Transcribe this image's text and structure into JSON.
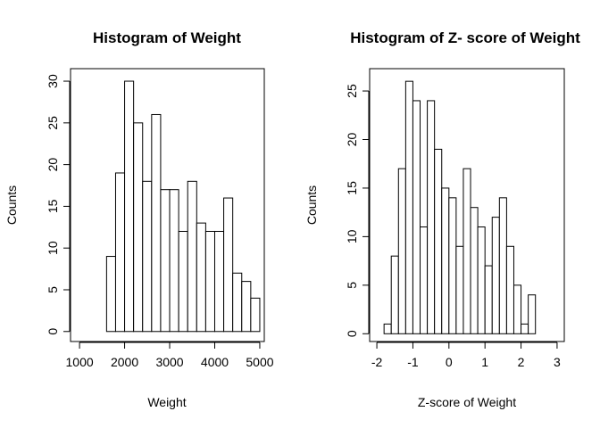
{
  "chart_data": [
    {
      "type": "bar",
      "title": "Histogram of Weight",
      "xlabel": "Weight",
      "ylabel": "Counts",
      "xlim": [
        800,
        5100
      ],
      "ylim": [
        -1.2,
        31.5
      ],
      "x_ticks": [
        1000,
        2000,
        3000,
        4000,
        5000
      ],
      "x_tick_labels": [
        "1000",
        "2000",
        "3000",
        "4000",
        "5000"
      ],
      "y_ticks": [
        0,
        5,
        10,
        15,
        20,
        25,
        30
      ],
      "y_tick_labels": [
        "0",
        "5",
        "10",
        "15",
        "20",
        "25",
        "30"
      ],
      "bin_edges": [
        1600,
        1800,
        2000,
        2200,
        2400,
        2600,
        2800,
        3000,
        3200,
        3400,
        3600,
        3800,
        4000,
        4200,
        4400,
        4600,
        4800,
        5000
      ],
      "values": [
        9,
        19,
        30,
        25,
        18,
        26,
        17,
        17,
        12,
        18,
        13,
        12,
        12,
        16,
        7,
        6,
        4
      ],
      "grid": false
    },
    {
      "type": "bar",
      "title": "Histogram of Z- score of Weight",
      "xlabel": "Z-score of Weight",
      "ylabel": "Counts",
      "xlim": [
        -2.2,
        3.2
      ],
      "ylim": [
        -0.8,
        27.3
      ],
      "x_ticks": [
        -2,
        -1,
        0,
        1,
        2,
        3
      ],
      "x_tick_labels": [
        "-2",
        "-1",
        "0",
        "1",
        "2",
        "3"
      ],
      "y_ticks": [
        0,
        5,
        10,
        15,
        20,
        25
      ],
      "y_tick_labels": [
        "0",
        "5",
        "10",
        "15",
        "20",
        "25"
      ],
      "bin_edges": [
        -1.8,
        -1.6,
        -1.4,
        -1.2,
        -1.0,
        -0.8,
        -0.6,
        -0.4,
        -0.2,
        0.0,
        0.2,
        0.4,
        0.6,
        0.8,
        1.0,
        1.2,
        1.4,
        1.6,
        1.8,
        2.0,
        2.2,
        2.4
      ],
      "values": [
        1,
        8,
        17,
        26,
        24,
        11,
        24,
        19,
        15,
        14,
        9,
        17,
        13,
        11,
        7,
        12,
        14,
        9,
        5,
        1,
        4
      ],
      "grid": false
    }
  ]
}
